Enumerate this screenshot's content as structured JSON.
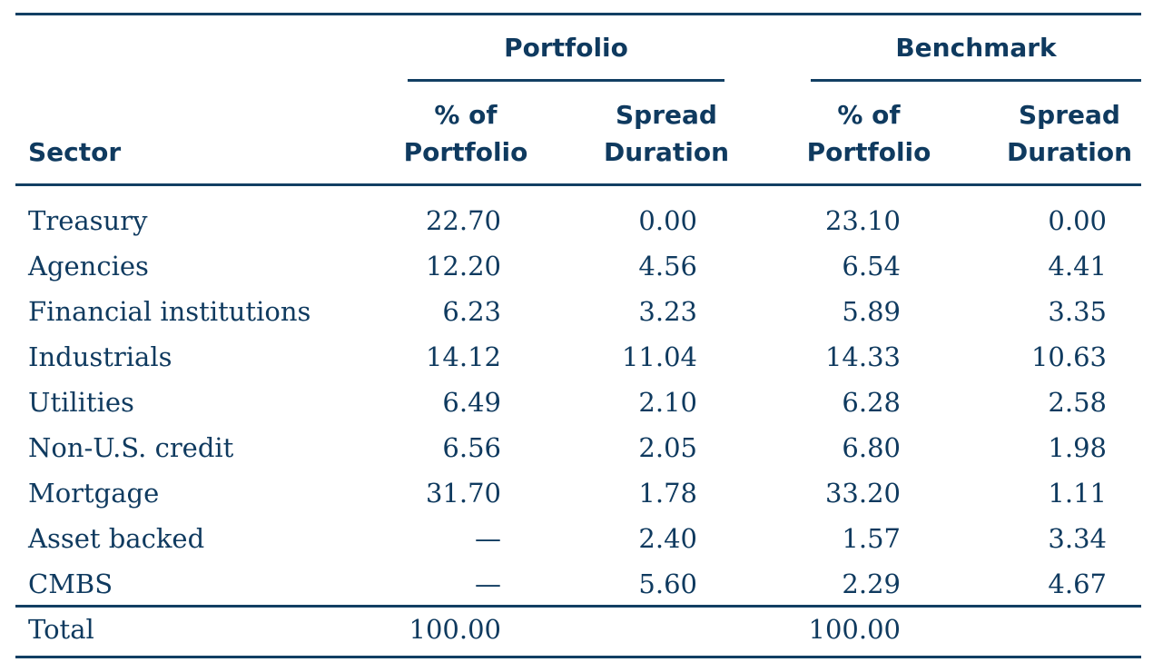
{
  "table": {
    "group_headers": {
      "portfolio": "Portfolio",
      "benchmark": "Benchmark"
    },
    "column_headers": {
      "sector": "Sector",
      "portfolio_pct_line1": "% of",
      "portfolio_pct_line2": "Portfolio",
      "portfolio_spread_line1": "Spread",
      "portfolio_spread_line2": "Duration",
      "benchmark_pct_line1": "% of",
      "benchmark_pct_line2": "Portfolio",
      "benchmark_spread_line1": "Spread",
      "benchmark_spread_line2": "Duration"
    },
    "rows": [
      {
        "sector": "Treasury",
        "p_pct": "22.70",
        "p_dur": "0.00",
        "b_pct": "23.10",
        "b_dur": "0.00"
      },
      {
        "sector": "Agencies",
        "p_pct": "12.20",
        "p_dur": "4.56",
        "b_pct": "6.54",
        "b_dur": "4.41"
      },
      {
        "sector": "Financial institutions",
        "p_pct": "6.23",
        "p_dur": "3.23",
        "b_pct": "5.89",
        "b_dur": "3.35"
      },
      {
        "sector": "Industrials",
        "p_pct": "14.12",
        "p_dur": "11.04",
        "b_pct": "14.33",
        "b_dur": "10.63"
      },
      {
        "sector": "Utilities",
        "p_pct": "6.49",
        "p_dur": "2.10",
        "b_pct": "6.28",
        "b_dur": "2.58"
      },
      {
        "sector": "Non-U.S. credit",
        "p_pct": "6.56",
        "p_dur": "2.05",
        "b_pct": "6.80",
        "b_dur": "1.98"
      },
      {
        "sector": "Mortgage",
        "p_pct": "31.70",
        "p_dur": "1.78",
        "b_pct": "33.20",
        "b_dur": "1.11"
      },
      {
        "sector": "Asset backed",
        "p_pct": "—",
        "p_dur": "2.40",
        "b_pct": "1.57",
        "b_dur": "3.34"
      },
      {
        "sector": "CMBS",
        "p_pct": "—",
        "p_dur": "5.60",
        "b_pct": "2.29",
        "b_dur": "4.67"
      }
    ],
    "total": {
      "label": "Total",
      "p_pct": "100.00",
      "b_pct": "100.00"
    }
  },
  "colors": {
    "text": "#0f3a5f",
    "rule": "#123f63"
  }
}
